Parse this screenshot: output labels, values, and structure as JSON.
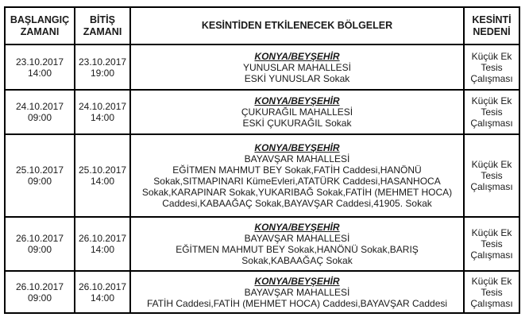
{
  "table": {
    "headers": {
      "start": "BAŞLANGIÇ ZAMANI",
      "end": "BİTİŞ ZAMANI",
      "area": "KESİNTİDEN ETKİLENECEK BÖLGELER",
      "cause": "KESİNTİ NEDENİ"
    },
    "rows": [
      {
        "start_date": "23.10.2017",
        "start_time": "14:00",
        "end_date": "23.10.2017",
        "end_time": "19:00",
        "city": "KONYA/BEYŞEHİR",
        "district": "YUNUSLAR MAHALLESİ",
        "streets": "ESKİ YUNUSLAR Sokak",
        "cause": "Küçük Ek Tesis Çalışması"
      },
      {
        "start_date": "24.10.2017",
        "start_time": "09:00",
        "end_date": "24.10.2017",
        "end_time": "14:00",
        "city": "KONYA/BEYŞEHİR",
        "district": "ÇUKURAĞIL MAHALLESİ",
        "streets": "ESKİ ÇUKURAĞIL Sokak",
        "cause": "Küçük Ek Tesis Çalışması"
      },
      {
        "start_date": "25.10.2017",
        "start_time": "09:00",
        "end_date": "25.10.2017",
        "end_time": "14:00",
        "city": "KONYA/BEYŞEHİR",
        "district": "BAYAVŞAR MAHALLESİ",
        "streets": "EĞİTMEN MAHMUT BEY Sokak,FATİH Caddesi,HANÖNÜ Sokak,SITMAPINARI KümeEvleri,ATATÜRK Caddesi,HASANHOCA Sokak,KARAPINAR Sokak,YUKARIBAĞ Sokak,FATİH (MEHMET HOCA) Caddesi,KABAAĞAÇ Sokak,BAYAVŞAR Caddesi,41905. Sokak",
        "cause": "Küçük Ek Tesis Çalışması"
      },
      {
        "start_date": "26.10.2017",
        "start_time": "09:00",
        "end_date": "26.10.2017",
        "end_time": "14:00",
        "city": "KONYA/BEYŞEHİR",
        "district": "BAYAVŞAR MAHALLESİ",
        "streets": "EĞİTMEN MAHMUT BEY Sokak,HANÖNÜ Sokak,BARIŞ Sokak,KABAAĞAÇ Sokak",
        "cause": "Küçük Ek Tesis Çalışması"
      },
      {
        "start_date": "26.10.2017",
        "start_time": "09:00",
        "end_date": "26.10.2017",
        "end_time": "14:00",
        "city": "KONYA/BEYŞEHİR",
        "district": "BAYAVŞAR MAHALLESİ",
        "streets": "FATİH Caddesi,FATİH (MEHMET HOCA) Caddesi,BAYAVŞAR Caddesi",
        "cause": "Küçük Ek Tesis Çalışması"
      }
    ]
  }
}
